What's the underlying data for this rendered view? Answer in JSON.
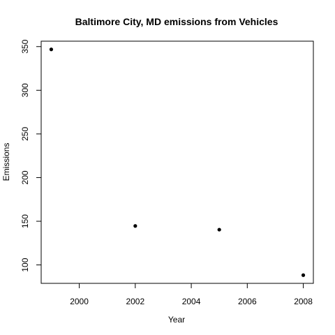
{
  "chart_data": {
    "type": "scatter",
    "title": "Baltimore City, MD emissions from Vehicles",
    "xlabel": "Year",
    "ylabel": "Emissions",
    "x": [
      1999,
      2002,
      2005,
      2008
    ],
    "y": [
      346.82,
      144.63,
      140.38,
      88.28
    ],
    "xlim": [
      1998.64,
      2008.36
    ],
    "ylim": [
      78.9,
      356.2
    ],
    "xticks": [
      2000,
      2002,
      2004,
      2006,
      2008
    ],
    "yticks": [
      100,
      150,
      200,
      250,
      300,
      350
    ],
    "grid": false,
    "legend": "none"
  }
}
